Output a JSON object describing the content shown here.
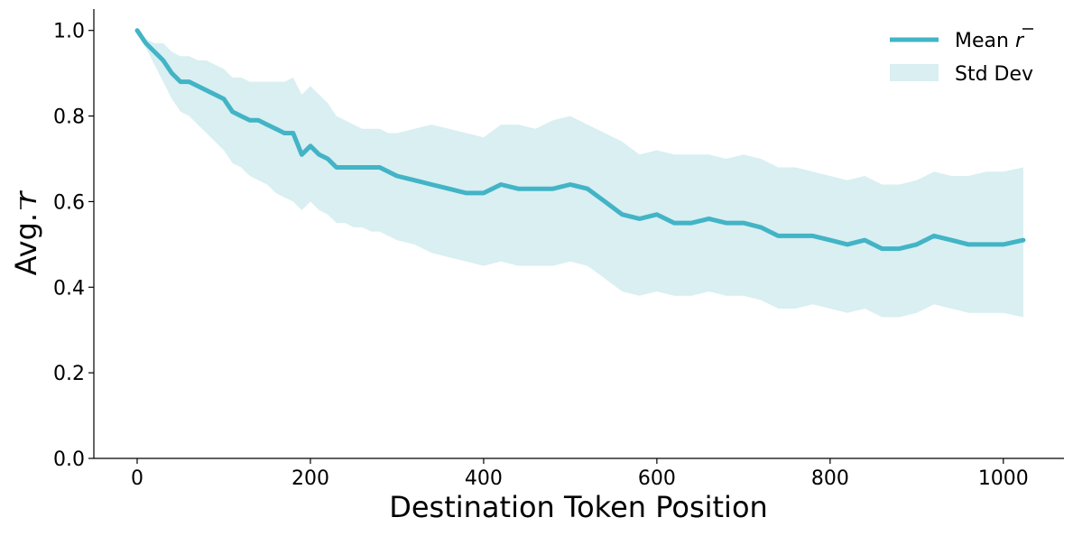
{
  "chart_data": {
    "type": "line",
    "title": "",
    "xlabel": "Destination Token Position",
    "ylabel_prefix": "Avg. ",
    "ylabel_symbol": "r",
    "xlim": [
      -50,
      1070
    ],
    "ylim": [
      0,
      1.05
    ],
    "x_ticks": [
      0,
      200,
      400,
      600,
      800,
      1000
    ],
    "x_tick_labels": [
      "0",
      "200",
      "400",
      "600",
      "800",
      "1000"
    ],
    "y_ticks": [
      0.0,
      0.2,
      0.4,
      0.6,
      0.8,
      1.0
    ],
    "y_tick_labels": [
      "0.0",
      "0.2",
      "0.4",
      "0.6",
      "0.8",
      "1.0"
    ],
    "grid": false,
    "legend_position": "top-right",
    "legend": {
      "mean_prefix": "Mean ",
      "mean_symbol": "r",
      "std_label": "Std Dev"
    },
    "colors": {
      "mean": "#42b4c6",
      "std": "#d9eff2"
    },
    "series": [
      {
        "name": "Mean r̄",
        "kind": "line",
        "x": [
          0,
          10,
          20,
          30,
          40,
          50,
          60,
          70,
          80,
          90,
          100,
          110,
          120,
          130,
          140,
          150,
          160,
          170,
          180,
          190,
          200,
          210,
          220,
          230,
          240,
          250,
          260,
          270,
          280,
          290,
          300,
          320,
          340,
          360,
          380,
          400,
          420,
          440,
          460,
          480,
          500,
          520,
          540,
          560,
          580,
          600,
          620,
          640,
          660,
          680,
          700,
          720,
          740,
          760,
          780,
          800,
          820,
          840,
          860,
          880,
          900,
          920,
          940,
          960,
          980,
          1000,
          1023
        ],
        "y": [
          1.0,
          0.97,
          0.95,
          0.93,
          0.9,
          0.88,
          0.88,
          0.87,
          0.86,
          0.85,
          0.84,
          0.81,
          0.8,
          0.79,
          0.79,
          0.78,
          0.77,
          0.76,
          0.76,
          0.71,
          0.73,
          0.71,
          0.7,
          0.68,
          0.68,
          0.68,
          0.68,
          0.68,
          0.68,
          0.67,
          0.66,
          0.65,
          0.64,
          0.63,
          0.62,
          0.62,
          0.64,
          0.63,
          0.63,
          0.63,
          0.64,
          0.63,
          0.6,
          0.57,
          0.56,
          0.57,
          0.55,
          0.55,
          0.56,
          0.55,
          0.55,
          0.54,
          0.52,
          0.52,
          0.52,
          0.51,
          0.5,
          0.51,
          0.49,
          0.49,
          0.5,
          0.52,
          0.51,
          0.5,
          0.5,
          0.5,
          0.51
        ]
      },
      {
        "name": "Std Dev",
        "kind": "band",
        "x": [
          0,
          10,
          20,
          30,
          40,
          50,
          60,
          70,
          80,
          90,
          100,
          110,
          120,
          130,
          140,
          150,
          160,
          170,
          180,
          190,
          200,
          210,
          220,
          230,
          240,
          250,
          260,
          270,
          280,
          290,
          300,
          320,
          340,
          360,
          380,
          400,
          420,
          440,
          460,
          480,
          500,
          520,
          540,
          560,
          580,
          600,
          620,
          640,
          660,
          680,
          700,
          720,
          740,
          760,
          780,
          800,
          820,
          840,
          860,
          880,
          900,
          920,
          940,
          960,
          980,
          1000,
          1023
        ],
        "lower": [
          1.0,
          0.96,
          0.92,
          0.88,
          0.84,
          0.81,
          0.8,
          0.78,
          0.76,
          0.74,
          0.72,
          0.69,
          0.68,
          0.66,
          0.65,
          0.64,
          0.62,
          0.61,
          0.6,
          0.58,
          0.6,
          0.58,
          0.57,
          0.55,
          0.55,
          0.54,
          0.54,
          0.53,
          0.53,
          0.52,
          0.51,
          0.5,
          0.48,
          0.47,
          0.46,
          0.45,
          0.46,
          0.45,
          0.45,
          0.45,
          0.46,
          0.45,
          0.42,
          0.39,
          0.38,
          0.39,
          0.38,
          0.38,
          0.39,
          0.38,
          0.38,
          0.37,
          0.35,
          0.35,
          0.36,
          0.35,
          0.34,
          0.35,
          0.33,
          0.33,
          0.34,
          0.36,
          0.35,
          0.34,
          0.34,
          0.34,
          0.33
        ],
        "upper": [
          1.0,
          0.98,
          0.97,
          0.97,
          0.95,
          0.94,
          0.94,
          0.93,
          0.93,
          0.92,
          0.91,
          0.89,
          0.89,
          0.88,
          0.88,
          0.88,
          0.88,
          0.88,
          0.89,
          0.85,
          0.87,
          0.85,
          0.83,
          0.8,
          0.79,
          0.78,
          0.77,
          0.77,
          0.77,
          0.76,
          0.76,
          0.77,
          0.78,
          0.77,
          0.76,
          0.75,
          0.78,
          0.78,
          0.77,
          0.79,
          0.8,
          0.78,
          0.76,
          0.74,
          0.71,
          0.72,
          0.71,
          0.71,
          0.71,
          0.7,
          0.71,
          0.7,
          0.68,
          0.68,
          0.67,
          0.66,
          0.65,
          0.66,
          0.64,
          0.64,
          0.65,
          0.67,
          0.66,
          0.66,
          0.67,
          0.67,
          0.68
        ]
      }
    ]
  }
}
